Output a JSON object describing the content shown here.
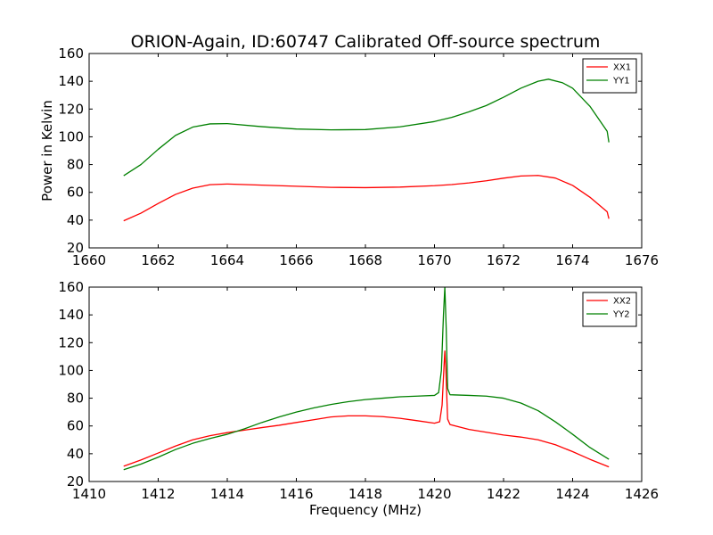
{
  "figure": {
    "title": "ORION-Again, ID:60747 Calibrated Off-source spectrum"
  },
  "chart_data": [
    {
      "type": "line",
      "title": "ORION-Again, ID:60747 Calibrated Off-source spectrum",
      "xlabel": "",
      "ylabel": "Power in Kelvin",
      "xlim": [
        1660,
        1676
      ],
      "ylim": [
        20,
        160
      ],
      "xticks": [
        1660,
        1662,
        1664,
        1666,
        1668,
        1670,
        1672,
        1674,
        1676
      ],
      "yticks": [
        20,
        40,
        60,
        80,
        100,
        120,
        140,
        160
      ],
      "grid": false,
      "legend_position": "top-right",
      "series": [
        {
          "name": "XX1",
          "color": "#ff0000",
          "points": [
            [
              1661.0,
              39.5
            ],
            [
              1661.5,
              45
            ],
            [
              1662.0,
              52
            ],
            [
              1662.5,
              58.5
            ],
            [
              1663.0,
              63
            ],
            [
              1663.5,
              65.5
            ],
            [
              1664.0,
              66
            ],
            [
              1665.0,
              65.2
            ],
            [
              1666.0,
              64.4
            ],
            [
              1667.0,
              63.6
            ],
            [
              1668.0,
              63.4
            ],
            [
              1669.0,
              63.8
            ],
            [
              1670.0,
              64.8
            ],
            [
              1670.5,
              65.6
            ],
            [
              1671.0,
              66.8
            ],
            [
              1671.5,
              68.3
            ],
            [
              1672.0,
              70.2
            ],
            [
              1672.5,
              71.8
            ],
            [
              1673.0,
              72.2
            ],
            [
              1673.5,
              70.3
            ],
            [
              1674.0,
              65
            ],
            [
              1674.5,
              56.5
            ],
            [
              1675.0,
              46
            ],
            [
              1675.05,
              41
            ]
          ]
        },
        {
          "name": "YY1",
          "color": "#008000",
          "points": [
            [
              1661.0,
              72
            ],
            [
              1661.5,
              80
            ],
            [
              1662.0,
              91
            ],
            [
              1662.5,
              101
            ],
            [
              1663.0,
              107
            ],
            [
              1663.5,
              109.3
            ],
            [
              1664.0,
              109.5
            ],
            [
              1665.0,
              107.3
            ],
            [
              1666.0,
              105.6
            ],
            [
              1667.0,
              105
            ],
            [
              1668.0,
              105.2
            ],
            [
              1669.0,
              107.2
            ],
            [
              1670.0,
              111
            ],
            [
              1670.5,
              114
            ],
            [
              1671.0,
              118
            ],
            [
              1671.5,
              122.5
            ],
            [
              1672.0,
              128.5
            ],
            [
              1672.5,
              135
            ],
            [
              1673.0,
              140
            ],
            [
              1673.3,
              141.5
            ],
            [
              1673.7,
              139
            ],
            [
              1674.0,
              135
            ],
            [
              1674.5,
              122
            ],
            [
              1675.0,
              104
            ],
            [
              1675.05,
              96
            ]
          ]
        }
      ]
    },
    {
      "type": "line",
      "title": "",
      "xlabel": "Frequency (MHz)",
      "ylabel": "",
      "xlim": [
        1410,
        1426
      ],
      "ylim": [
        20,
        160
      ],
      "xticks": [
        1410,
        1412,
        1414,
        1416,
        1418,
        1420,
        1422,
        1424,
        1426
      ],
      "yticks": [
        20,
        40,
        60,
        80,
        100,
        120,
        140,
        160
      ],
      "grid": false,
      "legend_position": "top-right",
      "series": [
        {
          "name": "XX2",
          "color": "#ff0000",
          "points": [
            [
              1411.0,
              31
            ],
            [
              1411.5,
              35.5
            ],
            [
              1412.0,
              40.5
            ],
            [
              1412.5,
              45.5
            ],
            [
              1413.0,
              50
            ],
            [
              1413.5,
              53
            ],
            [
              1414.0,
              55.2
            ],
            [
              1414.5,
              57
            ],
            [
              1415.0,
              58.8
            ],
            [
              1415.5,
              60.5
            ],
            [
              1416.0,
              62.5
            ],
            [
              1416.5,
              64.5
            ],
            [
              1417.0,
              66.5
            ],
            [
              1417.5,
              67.3
            ],
            [
              1418.0,
              67.3
            ],
            [
              1418.5,
              66.7
            ],
            [
              1419.0,
              65.5
            ],
            [
              1419.5,
              63.8
            ],
            [
              1420.0,
              62
            ],
            [
              1420.15,
              63
            ],
            [
              1420.22,
              75
            ],
            [
              1420.28,
              105
            ],
            [
              1420.3,
              114
            ],
            [
              1420.33,
              100
            ],
            [
              1420.38,
              65
            ],
            [
              1420.45,
              61
            ],
            [
              1421.0,
              57.5
            ],
            [
              1421.5,
              55.5
            ],
            [
              1422.0,
              53.5
            ],
            [
              1422.5,
              52
            ],
            [
              1423.0,
              50
            ],
            [
              1423.5,
              46.5
            ],
            [
              1424.0,
              41.5
            ],
            [
              1424.5,
              36
            ],
            [
              1425.05,
              30.5
            ]
          ]
        },
        {
          "name": "YY2",
          "color": "#008000",
          "points": [
            [
              1411.0,
              28.5
            ],
            [
              1411.5,
              32.5
            ],
            [
              1412.0,
              37.5
            ],
            [
              1412.5,
              43
            ],
            [
              1413.0,
              47.5
            ],
            [
              1413.5,
              51
            ],
            [
              1414.0,
              54
            ],
            [
              1414.5,
              58
            ],
            [
              1415.0,
              62.5
            ],
            [
              1415.5,
              66.5
            ],
            [
              1416.0,
              70
            ],
            [
              1416.5,
              73
            ],
            [
              1417.0,
              75.5
            ],
            [
              1417.5,
              77.5
            ],
            [
              1418.0,
              79
            ],
            [
              1418.5,
              80
            ],
            [
              1419.0,
              81
            ],
            [
              1419.5,
              81.5
            ],
            [
              1420.0,
              82
            ],
            [
              1420.12,
              84
            ],
            [
              1420.2,
              100
            ],
            [
              1420.26,
              140
            ],
            [
              1420.3,
              160
            ],
            [
              1420.34,
              130
            ],
            [
              1420.38,
              87
            ],
            [
              1420.45,
              82.5
            ],
            [
              1421.0,
              82
            ],
            [
              1421.5,
              81.5
            ],
            [
              1422.0,
              80
            ],
            [
              1422.5,
              76.5
            ],
            [
              1423.0,
              71
            ],
            [
              1423.5,
              63
            ],
            [
              1424.0,
              54
            ],
            [
              1424.5,
              44.5
            ],
            [
              1425.05,
              36
            ]
          ]
        }
      ]
    }
  ]
}
